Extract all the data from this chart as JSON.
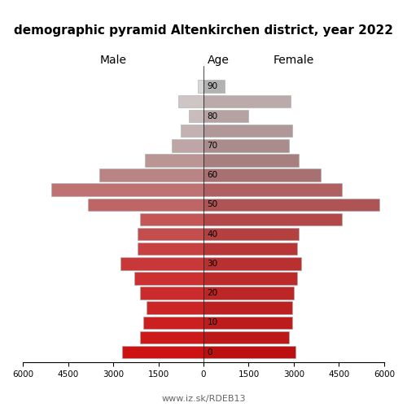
{
  "title": "demographic pyramid Altenkirchen district, year 2022",
  "age_positions": [
    90,
    85,
    80,
    75,
    70,
    65,
    60,
    55,
    50,
    45,
    40,
    35,
    30,
    25,
    20,
    15,
    10,
    5,
    0
  ],
  "male": [
    200,
    850,
    500,
    750,
    1050,
    1950,
    3450,
    5050,
    3850,
    2100,
    2200,
    2200,
    2750,
    2300,
    2100,
    1900,
    2000,
    2100,
    2700
  ],
  "female": [
    700,
    2900,
    1500,
    2950,
    2850,
    3150,
    3900,
    4600,
    5850,
    4600,
    3150,
    3100,
    3250,
    3100,
    3000,
    2950,
    2950,
    2850,
    3050
  ],
  "male_colors": [
    "#d8d8d8",
    "#cec5c5",
    "#c9bcbc",
    "#c4b2b2",
    "#bfa6a6",
    "#bb9494",
    "#ba8484",
    "#bf7272",
    "#c06565",
    "#c45656",
    "#c44e4e",
    "#c94040",
    "#c93838",
    "#cc3030",
    "#cc2b2b",
    "#cc2525",
    "#cc1f1f",
    "#cc1a1a",
    "#cc1212"
  ],
  "female_colors": [
    "#b2b2b2",
    "#baaaaa",
    "#b6a2a2",
    "#b09898",
    "#aa8c8c",
    "#a87f7f",
    "#a87070",
    "#b06060",
    "#ae5454",
    "#b44848",
    "#b44040",
    "#b93636",
    "#b93030",
    "#bc2a2a",
    "#bc2626",
    "#bc2020",
    "#bc1c1c",
    "#bc1818",
    "#bc1010"
  ],
  "age_tick_labels": [
    "90",
    "80",
    "70",
    "60",
    "50",
    "40",
    "30",
    "20",
    "10",
    "0"
  ],
  "age_tick_pos": [
    90,
    80,
    70,
    60,
    50,
    40,
    30,
    20,
    10,
    0
  ],
  "xlim": 6000,
  "xtick_vals": [
    -6000,
    -4500,
    -3000,
    -1500,
    0,
    1500,
    3000,
    4500,
    6000
  ],
  "xtick_labels": [
    "6000",
    "4500",
    "3000",
    "1500",
    "0",
    "1500",
    "3000",
    "4500",
    "6000"
  ],
  "label_male": "Male",
  "label_female": "Female",
  "label_age": "Age",
  "footer": "www.iz.sk/RDEB13",
  "bar_height": 4.3
}
